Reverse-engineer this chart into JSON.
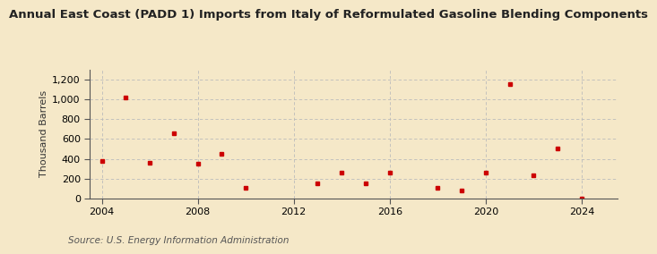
{
  "title": "Annual East Coast (PADD 1) Imports from Italy of Reformulated Gasoline Blending Components",
  "ylabel": "Thousand Barrels",
  "source": "Source: U.S. Energy Information Administration",
  "background_color": "#f5e8c8",
  "plot_bg_color": "#f5e8c8",
  "marker_color": "#cc0000",
  "years": [
    2004,
    2005,
    2006,
    2007,
    2008,
    2009,
    2010,
    2013,
    2014,
    2015,
    2016,
    2018,
    2019,
    2020,
    2021,
    2022,
    2023,
    2024
  ],
  "values": [
    380,
    1020,
    365,
    660,
    350,
    450,
    110,
    150,
    265,
    155,
    265,
    105,
    85,
    265,
    1150,
    235,
    505,
    5
  ],
  "xlim": [
    2003.5,
    2025.5
  ],
  "ylim": [
    0,
    1300
  ],
  "yticks": [
    0,
    200,
    400,
    600,
    800,
    1000,
    1200
  ],
  "xticks": [
    2004,
    2008,
    2012,
    2016,
    2020,
    2024
  ],
  "grid_color": "#bbbbbb",
  "title_fontsize": 9.5,
  "label_fontsize": 8,
  "tick_fontsize": 8,
  "source_fontsize": 7.5
}
